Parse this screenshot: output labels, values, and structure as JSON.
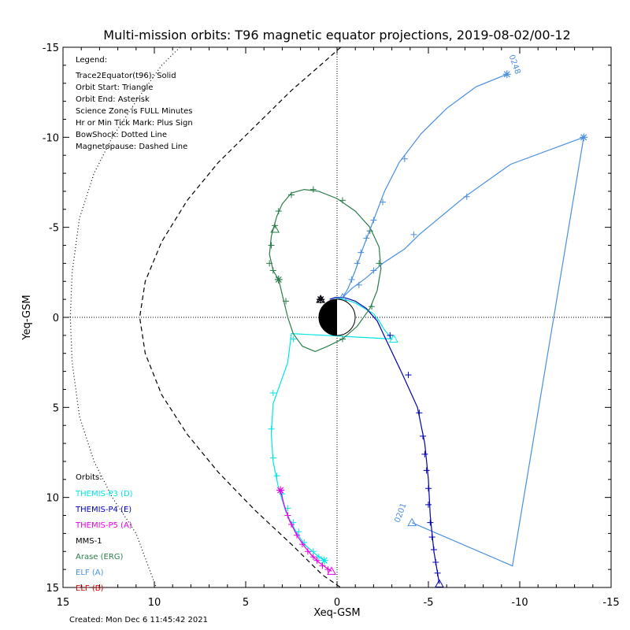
{
  "chart_data": {
    "type": "line",
    "title": "Multi-mission orbits: T96 magnetic equator projections, 2019-08-02/00-12",
    "xlabel": "Xeq-GSM",
    "ylabel": "Yeq-GSM",
    "xlim": [
      15,
      -15
    ],
    "ylim": [
      15,
      -15
    ],
    "x_ticks": [
      "15",
      "10",
      "5",
      "0",
      "-5",
      "-10",
      "-15"
    ],
    "y_ticks": [
      "-15",
      "-10",
      "-5",
      "0",
      "5",
      "10",
      "15"
    ],
    "legend": {
      "heading": "Legend:",
      "lines": [
        "Trace2Equator(t96): Solid",
        "Orbit Start: Triangle",
        "Orbit End: Asterisk",
        "Science Zone is FULL Minutes",
        "Hr or Min Tick Mark: Plus Sign",
        "BowShock: Dotted Line",
        "Magnetopause: Dashed Line"
      ]
    },
    "orbits_heading": "Orbits:",
    "created": "Created: Mon Dec  6 11:45:42 2021",
    "annotations": [
      {
        "text": "0248",
        "x": -9.6,
        "y": -14.0,
        "color": "#4a8fe0"
      },
      {
        "text": "0201",
        "x": -3.6,
        "y": 10.9,
        "color": "#4a8fe0"
      }
    ],
    "series": [
      {
        "name": "THEMIS-P3 (D)",
        "color": "#00e6e6",
        "points": [
          [
            0.4,
            -1.0
          ],
          [
            0.1,
            -1.1
          ],
          [
            -0.4,
            -1.0
          ],
          [
            -1.0,
            -0.8
          ],
          [
            -1.5,
            -0.5
          ],
          [
            -2.0,
            -0.2
          ],
          [
            -2.3,
            0.2
          ],
          [
            -2.6,
            0.7
          ],
          [
            -3.0,
            1.2
          ],
          [
            2.5,
            0.9
          ],
          [
            2.7,
            2.5
          ],
          [
            3.5,
            4.8
          ],
          [
            3.6,
            6.5
          ],
          [
            3.5,
            8.0
          ],
          [
            3.2,
            9.5
          ],
          [
            2.8,
            10.8
          ],
          [
            2.3,
            11.8
          ],
          [
            1.8,
            12.6
          ],
          [
            1.0,
            13.3
          ],
          [
            0.7,
            13.5
          ]
        ],
        "ticks": [
          [
            2.4,
            1.2
          ],
          [
            3.5,
            4.2
          ],
          [
            3.6,
            6.2
          ],
          [
            3.5,
            7.8
          ],
          [
            3.3,
            8.8
          ],
          [
            3.0,
            9.8
          ],
          [
            2.7,
            10.6
          ],
          [
            2.4,
            11.4
          ],
          [
            2.1,
            11.9
          ],
          [
            1.8,
            12.5
          ],
          [
            1.3,
            13.0
          ],
          [
            1.0,
            13.3
          ]
        ],
        "start": [
          -3.1,
          1.2
        ],
        "end": [
          0.7,
          13.5
        ]
      },
      {
        "name": "THEMIS-P4 (E)",
        "color": "#0000b4",
        "points": [
          [
            0.4,
            -1.0
          ],
          [
            0.1,
            -1.1
          ],
          [
            -0.4,
            -1.1
          ],
          [
            -1.0,
            -0.9
          ],
          [
            -1.6,
            -0.5
          ],
          [
            -2.2,
            0.2
          ],
          [
            -2.8,
            1.5
          ],
          [
            -3.6,
            3.2
          ],
          [
            -4.4,
            5.0
          ],
          [
            -4.8,
            7.0
          ],
          [
            -5.0,
            9.0
          ],
          [
            -5.1,
            11.0
          ],
          [
            -5.3,
            13.0
          ],
          [
            -5.6,
            14.8
          ]
        ],
        "ticks": [
          [
            -2.9,
            1.0
          ],
          [
            -3.9,
            3.2
          ],
          [
            -4.5,
            5.3
          ],
          [
            -4.7,
            6.6
          ],
          [
            -4.8,
            7.6
          ],
          [
            -4.9,
            8.5
          ],
          [
            -5.0,
            9.5
          ],
          [
            -5.0,
            10.4
          ],
          [
            -5.1,
            11.4
          ],
          [
            -5.2,
            12.2
          ],
          [
            -5.3,
            12.9
          ],
          [
            -5.4,
            13.6
          ],
          [
            -5.5,
            14.2
          ]
        ],
        "start": [
          -5.6,
          14.8
        ],
        "end": [
          0.9,
          -1.0
        ]
      },
      {
        "name": "THEMIS-P5 (A)",
        "color": "#e600e6",
        "points": [
          [
            0.3,
            14.1
          ],
          [
            0.6,
            13.9
          ],
          [
            1.0,
            13.6
          ],
          [
            1.4,
            13.2
          ],
          [
            1.8,
            12.7
          ],
          [
            2.2,
            12.1
          ],
          [
            2.6,
            11.3
          ],
          [
            2.9,
            10.4
          ],
          [
            3.1,
            9.6
          ]
        ],
        "ticks": [
          [
            0.5,
            14.0
          ],
          [
            0.8,
            13.8
          ],
          [
            1.1,
            13.5
          ],
          [
            1.3,
            13.3
          ],
          [
            1.6,
            13.0
          ],
          [
            1.9,
            12.6
          ],
          [
            2.2,
            12.1
          ],
          [
            2.5,
            11.5
          ],
          [
            2.7,
            11.0
          ]
        ],
        "start": [
          0.3,
          14.1
        ],
        "end": [
          3.1,
          9.6
        ]
      },
      {
        "name": "MMS-1",
        "color": "#000000",
        "points": [],
        "ticks": [],
        "start": [
          0.9,
          -1.0
        ],
        "end": [
          0.9,
          -1.0
        ]
      },
      {
        "name": "Arase (ERG)",
        "color": "#2a7d4a",
        "points": [
          [
            3.2,
            -2.1
          ],
          [
            3.5,
            -2.6
          ],
          [
            3.7,
            -3.5
          ],
          [
            3.6,
            -4.5
          ],
          [
            3.3,
            -5.6
          ],
          [
            3.0,
            -6.3
          ],
          [
            2.5,
            -6.9
          ],
          [
            1.8,
            -7.1
          ],
          [
            1.0,
            -7.0
          ],
          [
            0.0,
            -6.6
          ],
          [
            -1.0,
            -5.9
          ],
          [
            -1.8,
            -5.0
          ],
          [
            -2.3,
            -3.9
          ],
          [
            -2.4,
            -2.7
          ],
          [
            -2.2,
            -1.5
          ],
          [
            -1.8,
            -0.5
          ],
          [
            -1.1,
            0.5
          ],
          [
            -0.3,
            1.2
          ],
          [
            0.5,
            1.6
          ],
          [
            1.2,
            1.9
          ],
          [
            1.9,
            1.6
          ],
          [
            2.4,
            0.9
          ],
          [
            2.7,
            0.0
          ],
          [
            3.2,
            -2.1
          ]
        ],
        "ticks": [
          [
            3.6,
            -4.0
          ],
          [
            3.7,
            -3.0
          ],
          [
            3.4,
            -5.1
          ],
          [
            3.2,
            -5.9
          ],
          [
            2.5,
            -6.8
          ],
          [
            1.3,
            -7.1
          ],
          [
            -0.3,
            -6.5
          ],
          [
            -1.8,
            -4.8
          ],
          [
            -2.3,
            -3.0
          ],
          [
            -1.9,
            -0.6
          ],
          [
            -0.3,
            1.2
          ],
          [
            2.8,
            -0.9
          ],
          [
            3.5,
            -2.6
          ]
        ],
        "start": [
          3.4,
          -4.9
        ],
        "end": [
          3.2,
          -2.1
        ]
      },
      {
        "name": "ELF (A)",
        "color": "#4a8fe0",
        "points": [
          [
            -0.3,
            -1.1
          ],
          [
            -0.6,
            -1.6
          ],
          [
            -1.0,
            -2.6
          ],
          [
            -1.4,
            -3.8
          ],
          [
            -2.0,
            -5.4
          ],
          [
            -2.6,
            -7.0
          ],
          [
            -3.4,
            -8.6
          ],
          [
            -4.6,
            -10.2
          ],
          [
            -6.0,
            -11.6
          ],
          [
            -7.6,
            -12.8
          ],
          [
            -9.3,
            -13.5
          ]
        ],
        "ticks": [
          [
            -0.8,
            -2.1
          ],
          [
            -1.1,
            -3.0
          ],
          [
            -1.3,
            -3.6
          ],
          [
            -1.6,
            -4.4
          ],
          [
            -2.0,
            -5.4
          ],
          [
            -2.5,
            -6.4
          ],
          [
            -3.7,
            -8.8
          ]
        ],
        "start": [
          -0.3,
          -1.1
        ],
        "end": [
          -9.3,
          -13.5
        ]
      },
      {
        "name": "ELF (B)",
        "color": "#e00000",
        "points": [],
        "ticks": [],
        "start": null,
        "end": null
      }
    ],
    "elf_secondary": {
      "color": "#4a8fe0",
      "points": [
        [
          -0.3,
          -1.1
        ],
        [
          -0.8,
          -1.6
        ],
        [
          -1.6,
          -2.2
        ],
        [
          -2.5,
          -3.0
        ],
        [
          -3.7,
          -3.8
        ],
        [
          -4.5,
          -4.6
        ],
        [
          -7.0,
          -6.7
        ],
        [
          -9.5,
          -8.5
        ],
        [
          -13.5,
          -10.0
        ],
        [
          -9.6,
          13.8
        ],
        [
          -4.1,
          11.4
        ]
      ],
      "ticks": [
        [
          -1.2,
          -1.8
        ],
        [
          -2.0,
          -2.6
        ],
        [
          -4.2,
          -4.6
        ],
        [
          -7.1,
          -6.7
        ]
      ],
      "start": [
        -4.1,
        11.4
      ],
      "end": [
        -13.5,
        -10.0
      ]
    },
    "magnetopause": {
      "color": "#000000",
      "points": [
        [
          -0.2,
          -15.0
        ],
        [
          0.8,
          -14.1
        ],
        [
          2.5,
          -12.6
        ],
        [
          4.5,
          -10.6
        ],
        [
          6.5,
          -8.6
        ],
        [
          8.2,
          -6.5
        ],
        [
          9.6,
          -4.2
        ],
        [
          10.5,
          -2.0
        ],
        [
          10.8,
          0.0
        ],
        [
          10.5,
          2.0
        ],
        [
          9.6,
          4.3
        ],
        [
          8.2,
          6.5
        ],
        [
          6.5,
          8.6
        ],
        [
          4.5,
          10.7
        ],
        [
          2.5,
          12.6
        ],
        [
          0.8,
          14.3
        ],
        [
          -0.2,
          15.0
        ]
      ]
    },
    "bowshock": {
      "color": "#000000",
      "points": [
        [
          8.6,
          -15.0
        ],
        [
          9.6,
          -14.0
        ],
        [
          11.0,
          -12.0
        ],
        [
          12.3,
          -10.0
        ],
        [
          13.3,
          -8.0
        ],
        [
          14.1,
          -5.5
        ],
        [
          14.5,
          -2.5
        ],
        [
          14.6,
          0.0
        ],
        [
          14.5,
          2.5
        ],
        [
          14.1,
          5.5
        ],
        [
          13.3,
          8.0
        ],
        [
          12.3,
          10.0
        ],
        [
          11.0,
          12.0
        ],
        [
          9.9,
          15.0
        ]
      ]
    }
  }
}
